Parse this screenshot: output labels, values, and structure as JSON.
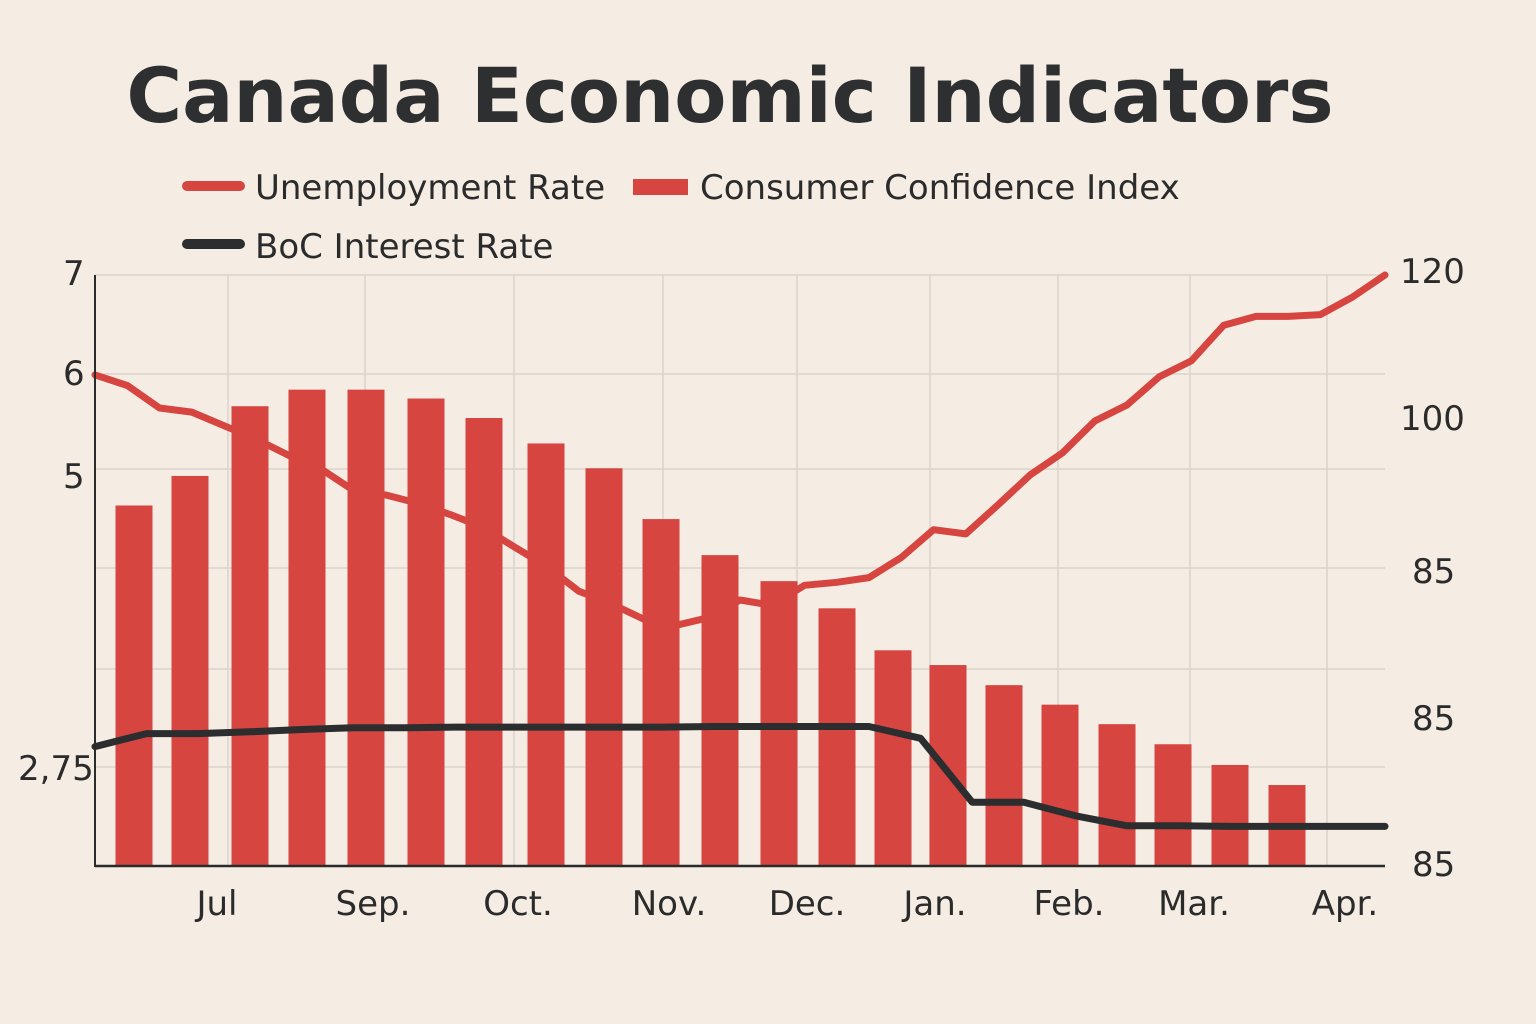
{
  "chart_data": {
    "type": "bar",
    "title": "Canada Economic Indicators",
    "categories": [
      "Jul",
      "Sep.",
      "Oct.",
      "Nov.",
      "Dec.",
      "Jan.",
      "Feb.",
      "Mar.",
      "Apr."
    ],
    "legend": [
      {
        "label": "Unemployment Rate",
        "color": "#d64540"
      },
      {
        "label": "Consumer Confidence Index",
        "color": "#d64540"
      },
      {
        "label": "BoC Interest Rate",
        "color": "#2b2d2f"
      }
    ],
    "left_axis_ticks": [
      "7",
      "6",
      "5",
      "2,75"
    ],
    "right_axis_ticks": [
      "120",
      "100",
      "85",
      "85",
      "85"
    ],
    "bar_series": {
      "name": "Consumer Confidence Index",
      "fraction_of_plot_height": [
        0.61,
        0.66,
        0.778,
        0.806,
        0.806,
        0.791,
        0.758,
        0.715,
        0.673,
        0.587,
        0.526,
        0.482,
        0.436,
        0.365,
        0.34,
        0.306,
        0.273,
        0.24,
        0.206,
        0.171,
        0.137
      ]
    },
    "line_series": [
      {
        "name": "Unemployment Rate",
        "color": "#d64540",
        "fraction_of_plot_height": [
          0.831,
          0.813,
          0.775,
          0.768,
          0.745,
          0.722,
          0.695,
          0.672,
          0.636,
          0.628,
          0.614,
          0.595,
          0.574,
          0.54,
          0.507,
          0.465,
          0.444,
          0.418,
          0.407,
          0.42,
          0.45,
          0.441,
          0.475,
          0.48,
          0.488,
          0.522,
          0.569,
          0.562,
          0.611,
          0.662,
          0.699,
          0.753,
          0.78,
          0.828,
          0.855,
          0.915,
          0.93,
          0.93,
          0.933,
          0.963,
          1.0
        ]
      },
      {
        "name": "BoC Interest Rate",
        "color": "#2b2d2f",
        "fraction_of_plot_height": [
          0.202,
          0.224,
          0.224,
          0.227,
          0.231,
          0.234,
          0.234,
          0.235,
          0.235,
          0.235,
          0.235,
          0.235,
          0.236,
          0.236,
          0.236,
          0.236,
          0.216,
          0.108,
          0.108,
          0.085,
          0.068,
          0.068,
          0.067,
          0.067,
          0.067,
          0.067
        ]
      }
    ],
    "colors": {
      "background": "#f5ede4",
      "bars": "#d64540",
      "line_red": "#d64540",
      "line_dark": "#2b2d2f",
      "grid": "#d9d3cb",
      "text": "#2b2b2b"
    },
    "grid": true,
    "legend_position": "top-left"
  }
}
